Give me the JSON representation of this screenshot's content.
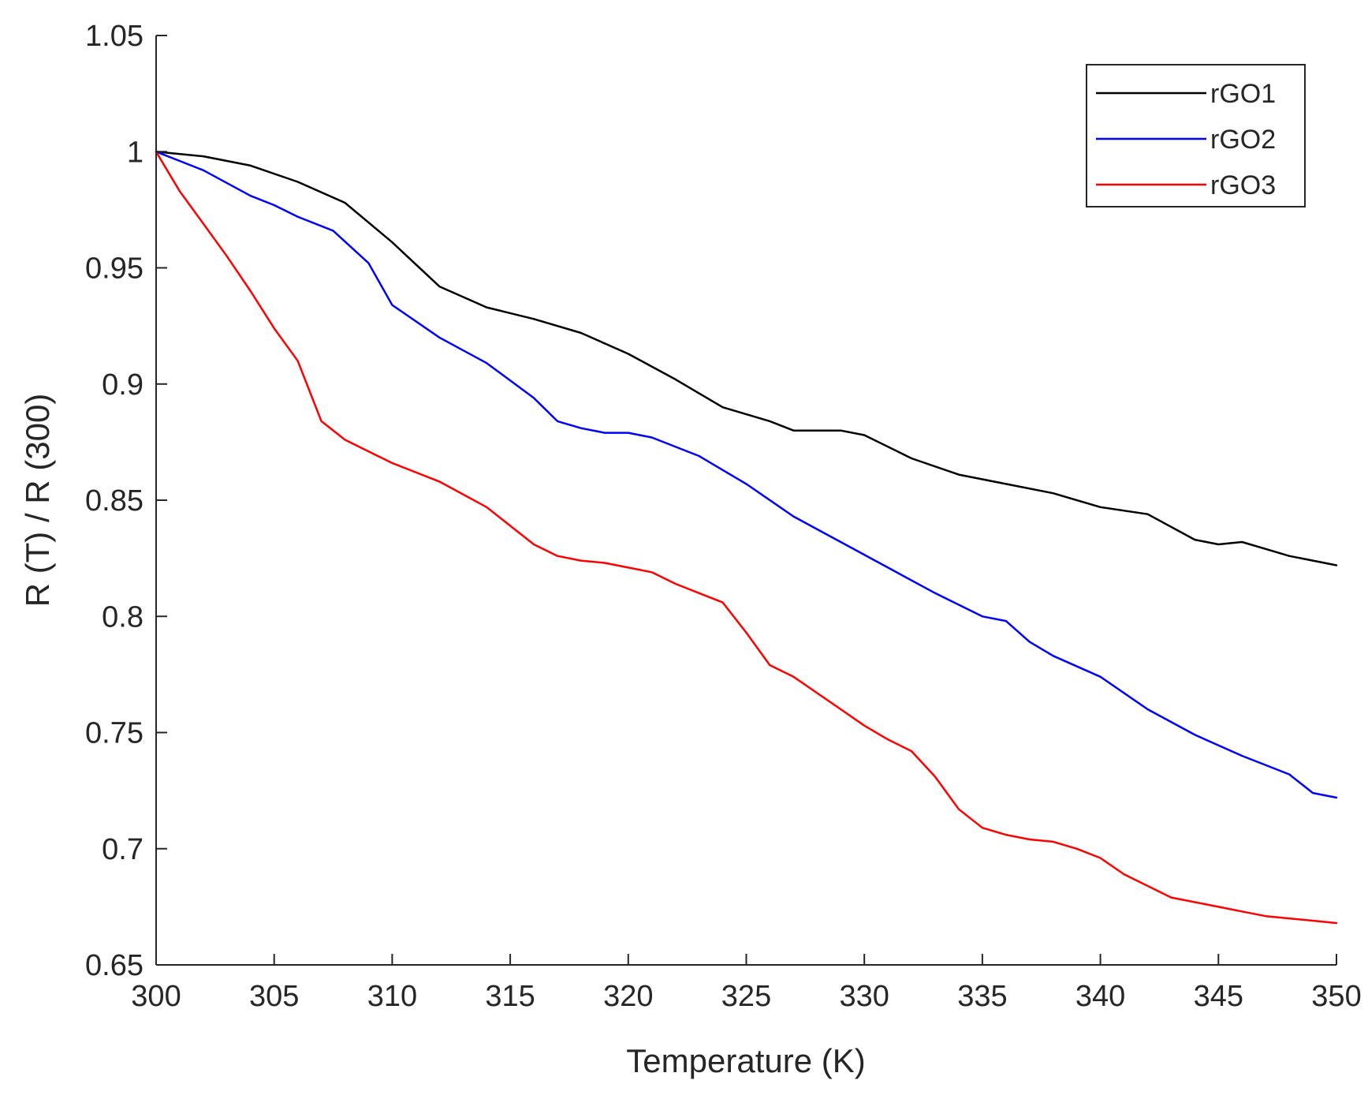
{
  "chart_data": {
    "type": "line",
    "title": "",
    "xlabel": "Temperature (K)",
    "ylabel": "R (T) / R (300)",
    "xlim": [
      300,
      350
    ],
    "ylim": [
      0.65,
      1.05
    ],
    "x_ticks": [
      300,
      305,
      310,
      315,
      320,
      325,
      330,
      335,
      340,
      345,
      350
    ],
    "y_ticks": [
      0.65,
      0.7,
      0.75,
      0.8,
      0.85,
      0.9,
      0.95,
      1,
      1.05
    ],
    "x_tick_labels": [
      "300",
      "305",
      "310",
      "315",
      "320",
      "325",
      "330",
      "335",
      "340",
      "345",
      "350"
    ],
    "y_tick_labels": [
      "0.65",
      "0.7",
      "0.75",
      "0.8",
      "0.85",
      "0.9",
      "0.95",
      "1",
      "1.05"
    ],
    "grid": false,
    "legend_position": "top-right",
    "series": [
      {
        "name": "rGO1",
        "color": "#000000",
        "x": [
          300,
          302,
          304,
          306,
          308,
          310,
          312,
          314,
          316,
          318,
          320,
          322,
          324,
          326,
          327,
          329,
          330,
          332,
          334,
          336,
          338,
          340,
          342,
          344,
          345,
          346,
          347,
          348,
          350
        ],
        "y": [
          1.0,
          0.998,
          0.994,
          0.987,
          0.978,
          0.961,
          0.942,
          0.933,
          0.928,
          0.922,
          0.913,
          0.902,
          0.89,
          0.884,
          0.88,
          0.88,
          0.878,
          0.868,
          0.861,
          0.857,
          0.853,
          0.847,
          0.844,
          0.833,
          0.831,
          0.832,
          0.829,
          0.826,
          0.822
        ]
      },
      {
        "name": "rGO2",
        "color": "#0000ff",
        "x": [
          300,
          301,
          302,
          304,
          305,
          306,
          307.5,
          309,
          310,
          312,
          314,
          316,
          317,
          318,
          319,
          320,
          321,
          323,
          325,
          327,
          329,
          331,
          333,
          335,
          336,
          337,
          338,
          340,
          342,
          344,
          346,
          348,
          349,
          350
        ],
        "y": [
          1.0,
          0.996,
          0.992,
          0.981,
          0.977,
          0.972,
          0.966,
          0.952,
          0.934,
          0.92,
          0.909,
          0.894,
          0.884,
          0.881,
          0.879,
          0.879,
          0.877,
          0.869,
          0.857,
          0.843,
          0.832,
          0.821,
          0.81,
          0.8,
          0.798,
          0.789,
          0.783,
          0.774,
          0.76,
          0.749,
          0.74,
          0.732,
          0.724,
          0.722
        ]
      },
      {
        "name": "rGO3",
        "color": "#ff0000",
        "x": [
          300,
          301,
          302,
          303,
          304,
          305,
          306,
          307,
          308,
          309,
          310,
          312,
          314,
          315,
          316,
          317,
          318,
          319,
          320,
          321,
          322,
          324,
          325,
          326,
          327,
          328,
          329,
          330,
          331,
          332,
          333,
          334,
          335,
          336,
          337,
          338,
          339,
          340,
          341,
          342,
          343,
          344,
          345,
          346,
          347,
          348,
          349,
          350
        ],
        "y": [
          1.0,
          0.983,
          0.969,
          0.955,
          0.94,
          0.924,
          0.91,
          0.884,
          0.876,
          0.871,
          0.866,
          0.858,
          0.847,
          0.839,
          0.831,
          0.826,
          0.824,
          0.823,
          0.821,
          0.819,
          0.814,
          0.806,
          0.793,
          0.779,
          0.774,
          0.767,
          0.76,
          0.753,
          0.747,
          0.742,
          0.731,
          0.717,
          0.709,
          0.706,
          0.704,
          0.703,
          0.7,
          0.696,
          0.689,
          0.684,
          0.679,
          0.677,
          0.675,
          0.673,
          0.671,
          0.67,
          0.669,
          0.668
        ]
      }
    ]
  }
}
